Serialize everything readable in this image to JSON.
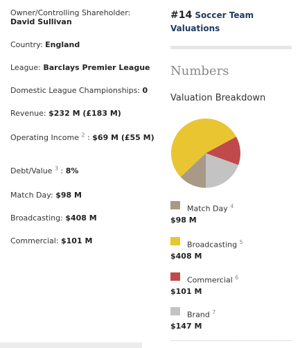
{
  "profile": {
    "owner_label": "Owner/Controlling Shareholder:",
    "owner_value": "David Sullivan",
    "country_label": "Country:",
    "country_value": "England",
    "league_label": "League:",
    "league_value": "Barclays Premier League",
    "championships_label": "Domestic League Championships:",
    "championships_value": "0",
    "revenue_label": "Revenue:",
    "revenue_value": "$232 M (£183 M)",
    "operating_income_label": "Operating Income",
    "operating_income_ref": "2",
    "operating_income_value": "$69 M (£55 M)",
    "debt_value_label": "Debt/Value",
    "debt_value_ref": "3",
    "debt_value_value": "8%",
    "match_day_label": "Match Day:",
    "match_day_value": "$98 M",
    "broadcasting_label": "Broadcasting:",
    "broadcasting_value": "$408 M",
    "commercial_label": "Commercial:",
    "commercial_value": "$101 M"
  },
  "ranking": {
    "rank": "#14",
    "list_name": "Soccer Team Valuations"
  },
  "numbers": {
    "title": "Numbers",
    "subtitle": "Valuation Breakdown"
  },
  "colors": {
    "match_day": "#a89a87",
    "broadcasting": "#e8c531",
    "commercial": "#c0494b",
    "brand": "#c3c3c3"
  },
  "chart_data": {
    "type": "pie",
    "title": "",
    "unit": "$M",
    "slices": [
      {
        "label": "Match Day",
        "ref": "4",
        "value": 98,
        "value_text": "$98 M",
        "color": "#a89a87"
      },
      {
        "label": "Broadcasting",
        "ref": "5",
        "value": 408,
        "value_text": "$408 M",
        "color": "#e8c531"
      },
      {
        "label": "Commercial",
        "ref": "6",
        "value": 101,
        "value_text": "$101 M",
        "color": "#c0494b"
      },
      {
        "label": "Brand",
        "ref": "7",
        "value": 147,
        "value_text": "$147 M",
        "color": "#c3c3c3"
      }
    ],
    "start_angle_deg": 90,
    "direction": "clockwise"
  }
}
